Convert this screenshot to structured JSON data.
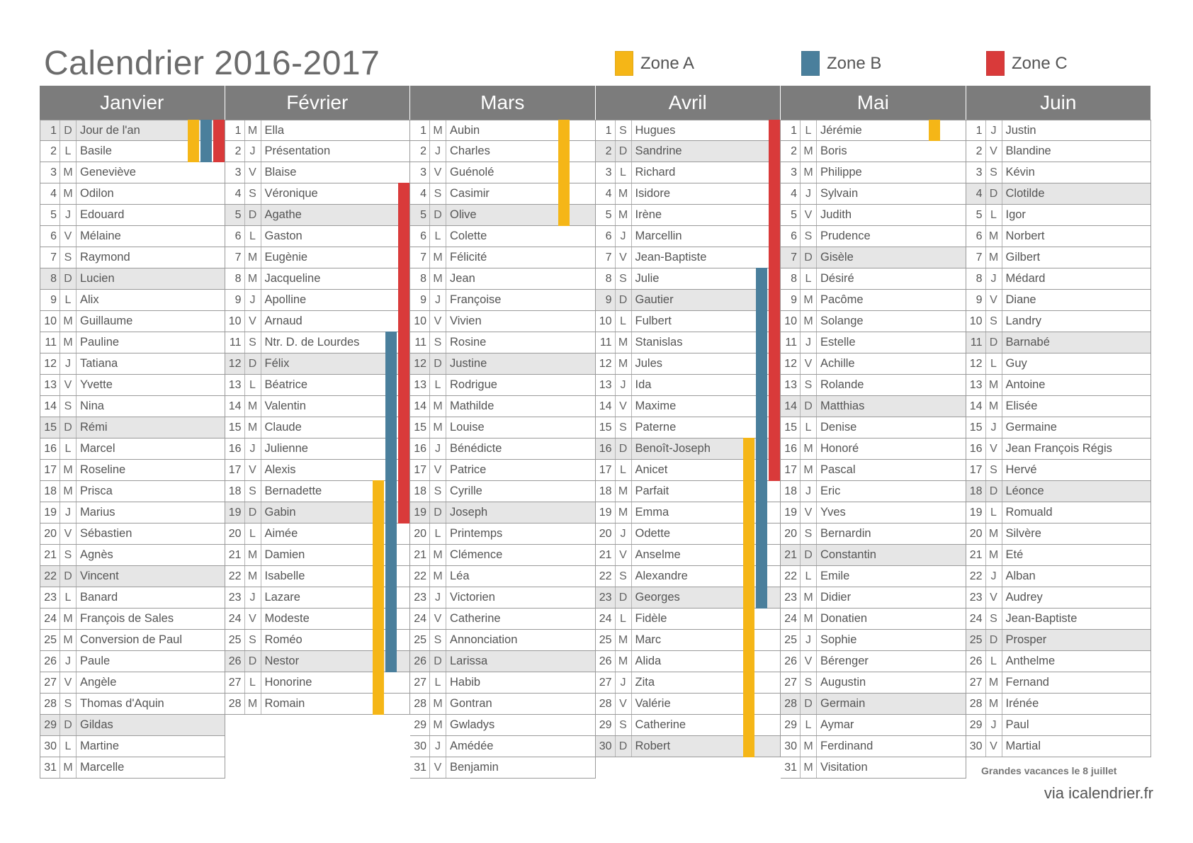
{
  "title": "Calendrier 2016-2017",
  "legend": [
    {
      "label": "Zone A",
      "color": "#f5b617"
    },
    {
      "label": "Zone B",
      "color": "#4a7f9c"
    },
    {
      "label": "Zone C",
      "color": "#d93a3a"
    }
  ],
  "months": [
    {
      "name": "Janvier",
      "days": [
        {
          "n": "1",
          "d": "D",
          "s": "Jour de l'an",
          "z": [
            "a",
            "b",
            "c"
          ]
        },
        {
          "n": "2",
          "d": "L",
          "s": "Basile",
          "z": [
            "a",
            "b",
            "c"
          ]
        },
        {
          "n": "3",
          "d": "M",
          "s": "Geneviève"
        },
        {
          "n": "4",
          "d": "M",
          "s": "Odilon"
        },
        {
          "n": "5",
          "d": "J",
          "s": "Edouard"
        },
        {
          "n": "6",
          "d": "V",
          "s": "Mélaine"
        },
        {
          "n": "7",
          "d": "S",
          "s": "Raymond"
        },
        {
          "n": "8",
          "d": "D",
          "s": "Lucien"
        },
        {
          "n": "9",
          "d": "L",
          "s": "Alix"
        },
        {
          "n": "10",
          "d": "M",
          "s": "Guillaume"
        },
        {
          "n": "11",
          "d": "M",
          "s": "Pauline"
        },
        {
          "n": "12",
          "d": "J",
          "s": "Tatiana"
        },
        {
          "n": "13",
          "d": "V",
          "s": "Yvette"
        },
        {
          "n": "14",
          "d": "S",
          "s": "Nina"
        },
        {
          "n": "15",
          "d": "D",
          "s": "Rémi"
        },
        {
          "n": "16",
          "d": "L",
          "s": "Marcel"
        },
        {
          "n": "17",
          "d": "M",
          "s": "Roseline"
        },
        {
          "n": "18",
          "d": "M",
          "s": "Prisca"
        },
        {
          "n": "19",
          "d": "J",
          "s": "Marius"
        },
        {
          "n": "20",
          "d": "V",
          "s": "Sébastien"
        },
        {
          "n": "21",
          "d": "S",
          "s": "Agnès"
        },
        {
          "n": "22",
          "d": "D",
          "s": "Vincent"
        },
        {
          "n": "23",
          "d": "L",
          "s": "Banard"
        },
        {
          "n": "24",
          "d": "M",
          "s": "François de Sales"
        },
        {
          "n": "25",
          "d": "M",
          "s": "Conversion de Paul"
        },
        {
          "n": "26",
          "d": "J",
          "s": "Paule"
        },
        {
          "n": "27",
          "d": "V",
          "s": "Angèle"
        },
        {
          "n": "28",
          "d": "S",
          "s": "Thomas d'Aquin"
        },
        {
          "n": "29",
          "d": "D",
          "s": "Gildas"
        },
        {
          "n": "30",
          "d": "L",
          "s": "Martine"
        },
        {
          "n": "31",
          "d": "M",
          "s": "Marcelle"
        }
      ]
    },
    {
      "name": "Février",
      "days": [
        {
          "n": "1",
          "d": "M",
          "s": "Ella"
        },
        {
          "n": "2",
          "d": "J",
          "s": "Présentation"
        },
        {
          "n": "3",
          "d": "V",
          "s": "Blaise"
        },
        {
          "n": "4",
          "d": "S",
          "s": "Véronique",
          "z": [
            "c"
          ]
        },
        {
          "n": "5",
          "d": "D",
          "s": "Agathe",
          "z": [
            "c"
          ]
        },
        {
          "n": "6",
          "d": "L",
          "s": "Gaston",
          "z": [
            "c"
          ]
        },
        {
          "n": "7",
          "d": "M",
          "s": "Eugènie",
          "z": [
            "c"
          ]
        },
        {
          "n": "8",
          "d": "M",
          "s": "Jacqueline",
          "z": [
            "c"
          ]
        },
        {
          "n": "9",
          "d": "J",
          "s": "Apolline",
          "z": [
            "c"
          ]
        },
        {
          "n": "10",
          "d": "V",
          "s": "Arnaud",
          "z": [
            "c"
          ]
        },
        {
          "n": "11",
          "d": "S",
          "s": "Ntr. D. de Lourdes",
          "z": [
            "b",
            "c"
          ]
        },
        {
          "n": "12",
          "d": "D",
          "s": "Félix",
          "z": [
            "b",
            "c"
          ]
        },
        {
          "n": "13",
          "d": "L",
          "s": "Béatrice",
          "z": [
            "b",
            "c"
          ]
        },
        {
          "n": "14",
          "d": "M",
          "s": "Valentin",
          "z": [
            "b",
            "c"
          ]
        },
        {
          "n": "15",
          "d": "M",
          "s": "Claude",
          "z": [
            "b",
            "c"
          ]
        },
        {
          "n": "16",
          "d": "J",
          "s": "Julienne",
          "z": [
            "b",
            "c"
          ]
        },
        {
          "n": "17",
          "d": "V",
          "s": "Alexis",
          "z": [
            "b",
            "c"
          ]
        },
        {
          "n": "18",
          "d": "S",
          "s": "Bernadette",
          "z": [
            "a",
            "b",
            "c"
          ]
        },
        {
          "n": "19",
          "d": "D",
          "s": "Gabin",
          "z": [
            "a",
            "b",
            "c"
          ]
        },
        {
          "n": "20",
          "d": "L",
          "s": "Aimée",
          "z": [
            "a",
            "b"
          ]
        },
        {
          "n": "21",
          "d": "M",
          "s": "Damien",
          "z": [
            "a",
            "b"
          ]
        },
        {
          "n": "22",
          "d": "M",
          "s": "Isabelle",
          "z": [
            "a",
            "b"
          ]
        },
        {
          "n": "23",
          "d": "J",
          "s": "Lazare",
          "z": [
            "a",
            "b"
          ]
        },
        {
          "n": "24",
          "d": "V",
          "s": "Modeste",
          "z": [
            "a",
            "b"
          ]
        },
        {
          "n": "25",
          "d": "S",
          "s": "Roméo",
          "z": [
            "a",
            "b"
          ]
        },
        {
          "n": "26",
          "d": "D",
          "s": "Nestor",
          "z": [
            "a",
            "b"
          ]
        },
        {
          "n": "27",
          "d": "L",
          "s": "Honorine",
          "z": [
            "a"
          ]
        },
        {
          "n": "28",
          "d": "M",
          "s": "Romain",
          "z": [
            "a"
          ]
        }
      ]
    },
    {
      "name": "Mars",
      "days": [
        {
          "n": "1",
          "d": "M",
          "s": "Aubin",
          "z": [
            "a"
          ]
        },
        {
          "n": "2",
          "d": "J",
          "s": "Charles",
          "z": [
            "a"
          ]
        },
        {
          "n": "3",
          "d": "V",
          "s": "Guénolé",
          "z": [
            "a"
          ]
        },
        {
          "n": "4",
          "d": "S",
          "s": "Casimir",
          "z": [
            "a"
          ]
        },
        {
          "n": "5",
          "d": "D",
          "s": "Olive",
          "z": [
            "a"
          ]
        },
        {
          "n": "6",
          "d": "L",
          "s": "Colette"
        },
        {
          "n": "7",
          "d": "M",
          "s": "Félicité"
        },
        {
          "n": "8",
          "d": "M",
          "s": "Jean"
        },
        {
          "n": "9",
          "d": "J",
          "s": "Françoise"
        },
        {
          "n": "10",
          "d": "V",
          "s": "Vivien"
        },
        {
          "n": "11",
          "d": "S",
          "s": "Rosine"
        },
        {
          "n": "12",
          "d": "D",
          "s": "Justine"
        },
        {
          "n": "13",
          "d": "L",
          "s": "Rodrigue"
        },
        {
          "n": "14",
          "d": "M",
          "s": "Mathilde"
        },
        {
          "n": "15",
          "d": "M",
          "s": "Louise"
        },
        {
          "n": "16",
          "d": "J",
          "s": "Bénédicte"
        },
        {
          "n": "17",
          "d": "V",
          "s": "Patrice"
        },
        {
          "n": "18",
          "d": "S",
          "s": "Cyrille"
        },
        {
          "n": "19",
          "d": "D",
          "s": "Joseph"
        },
        {
          "n": "20",
          "d": "L",
          "s": "Printemps"
        },
        {
          "n": "21",
          "d": "M",
          "s": "Clémence"
        },
        {
          "n": "22",
          "d": "M",
          "s": "Léa"
        },
        {
          "n": "23",
          "d": "J",
          "s": "Victorien"
        },
        {
          "n": "24",
          "d": "V",
          "s": "Catherine"
        },
        {
          "n": "25",
          "d": "S",
          "s": "Annonciation"
        },
        {
          "n": "26",
          "d": "D",
          "s": "Larissa"
        },
        {
          "n": "27",
          "d": "L",
          "s": "Habib"
        },
        {
          "n": "28",
          "d": "M",
          "s": "Gontran"
        },
        {
          "n": "29",
          "d": "M",
          "s": "Gwladys"
        },
        {
          "n": "30",
          "d": "J",
          "s": "Amédée"
        },
        {
          "n": "31",
          "d": "V",
          "s": "Benjamin"
        }
      ]
    },
    {
      "name": "Avril",
      "days": [
        {
          "n": "1",
          "d": "S",
          "s": "Hugues",
          "z": [
            "c"
          ]
        },
        {
          "n": "2",
          "d": "D",
          "s": "Sandrine",
          "z": [
            "c"
          ]
        },
        {
          "n": "3",
          "d": "L",
          "s": "Richard",
          "z": [
            "c"
          ]
        },
        {
          "n": "4",
          "d": "M",
          "s": "Isidore",
          "z": [
            "c"
          ]
        },
        {
          "n": "5",
          "d": "M",
          "s": "Irène",
          "z": [
            "c"
          ]
        },
        {
          "n": "6",
          "d": "J",
          "s": "Marcellin",
          "z": [
            "c"
          ]
        },
        {
          "n": "7",
          "d": "V",
          "s": "Jean-Baptiste",
          "z": [
            "c"
          ]
        },
        {
          "n": "8",
          "d": "S",
          "s": "Julie",
          "z": [
            "b",
            "c"
          ]
        },
        {
          "n": "9",
          "d": "D",
          "s": "Gautier",
          "z": [
            "b",
            "c"
          ]
        },
        {
          "n": "10",
          "d": "L",
          "s": "Fulbert",
          "z": [
            "b",
            "c"
          ]
        },
        {
          "n": "11",
          "d": "M",
          "s": "Stanislas",
          "z": [
            "b",
            "c"
          ]
        },
        {
          "n": "12",
          "d": "M",
          "s": "Jules",
          "z": [
            "b",
            "c"
          ]
        },
        {
          "n": "13",
          "d": "J",
          "s": "Ida",
          "z": [
            "b",
            "c"
          ]
        },
        {
          "n": "14",
          "d": "V",
          "s": "Maxime",
          "z": [
            "b",
            "c"
          ]
        },
        {
          "n": "15",
          "d": "S",
          "s": "Paterne",
          "z": [
            "b",
            "c"
          ]
        },
        {
          "n": "16",
          "d": "D",
          "s": "Benoît-Joseph",
          "z": [
            "a",
            "b",
            "c"
          ]
        },
        {
          "n": "17",
          "d": "L",
          "s": "Anicet",
          "z": [
            "a",
            "b",
            "c"
          ]
        },
        {
          "n": "18",
          "d": "M",
          "s": "Parfait",
          "z": [
            "a",
            "b"
          ]
        },
        {
          "n": "19",
          "d": "M",
          "s": "Emma",
          "z": [
            "a",
            "b"
          ]
        },
        {
          "n": "20",
          "d": "J",
          "s": "Odette",
          "z": [
            "a",
            "b"
          ]
        },
        {
          "n": "21",
          "d": "V",
          "s": "Anselme",
          "z": [
            "a",
            "b"
          ]
        },
        {
          "n": "22",
          "d": "S",
          "s": "Alexandre",
          "z": [
            "a",
            "b"
          ]
        },
        {
          "n": "23",
          "d": "D",
          "s": "Georges",
          "z": [
            "a",
            "b"
          ]
        },
        {
          "n": "24",
          "d": "L",
          "s": "Fidèle",
          "z": [
            "a"
          ]
        },
        {
          "n": "25",
          "d": "M",
          "s": "Marc",
          "z": [
            "a"
          ]
        },
        {
          "n": "26",
          "d": "M",
          "s": "Alida",
          "z": [
            "a"
          ]
        },
        {
          "n": "27",
          "d": "J",
          "s": "Zita",
          "z": [
            "a"
          ]
        },
        {
          "n": "28",
          "d": "V",
          "s": "Valérie",
          "z": [
            "a"
          ]
        },
        {
          "n": "29",
          "d": "S",
          "s": "Catherine",
          "z": [
            "a"
          ]
        },
        {
          "n": "30",
          "d": "D",
          "s": "Robert",
          "z": [
            "a"
          ]
        }
      ]
    },
    {
      "name": "Mai",
      "days": [
        {
          "n": "1",
          "d": "L",
          "s": "Jérémie",
          "z": [
            "a"
          ]
        },
        {
          "n": "2",
          "d": "M",
          "s": "Boris"
        },
        {
          "n": "3",
          "d": "M",
          "s": "Philippe"
        },
        {
          "n": "4",
          "d": "J",
          "s": "Sylvain"
        },
        {
          "n": "5",
          "d": "V",
          "s": "Judith"
        },
        {
          "n": "6",
          "d": "S",
          "s": "Prudence"
        },
        {
          "n": "7",
          "d": "D",
          "s": "Gisèle"
        },
        {
          "n": "8",
          "d": "L",
          "s": "Désiré"
        },
        {
          "n": "9",
          "d": "M",
          "s": "Pacôme"
        },
        {
          "n": "10",
          "d": "M",
          "s": "Solange"
        },
        {
          "n": "11",
          "d": "J",
          "s": "Estelle"
        },
        {
          "n": "12",
          "d": "V",
          "s": "Achille"
        },
        {
          "n": "13",
          "d": "S",
          "s": "Rolande"
        },
        {
          "n": "14",
          "d": "D",
          "s": "Matthias"
        },
        {
          "n": "15",
          "d": "L",
          "s": "Denise"
        },
        {
          "n": "16",
          "d": "M",
          "s": "Honoré"
        },
        {
          "n": "17",
          "d": "M",
          "s": "Pascal"
        },
        {
          "n": "18",
          "d": "J",
          "s": "Eric"
        },
        {
          "n": "19",
          "d": "V",
          "s": "Yves"
        },
        {
          "n": "20",
          "d": "S",
          "s": "Bernardin"
        },
        {
          "n": "21",
          "d": "D",
          "s": "Constantin"
        },
        {
          "n": "22",
          "d": "L",
          "s": "Emile"
        },
        {
          "n": "23",
          "d": "M",
          "s": "Didier"
        },
        {
          "n": "24",
          "d": "M",
          "s": "Donatien"
        },
        {
          "n": "25",
          "d": "J",
          "s": "Sophie"
        },
        {
          "n": "26",
          "d": "V",
          "s": "Bérenger"
        },
        {
          "n": "27",
          "d": "S",
          "s": "Augustin"
        },
        {
          "n": "28",
          "d": "D",
          "s": "Germain"
        },
        {
          "n": "29",
          "d": "L",
          "s": "Aymar"
        },
        {
          "n": "30",
          "d": "M",
          "s": "Ferdinand"
        },
        {
          "n": "31",
          "d": "M",
          "s": "Visitation"
        }
      ]
    },
    {
      "name": "Juin",
      "days": [
        {
          "n": "1",
          "d": "J",
          "s": "Justin"
        },
        {
          "n": "2",
          "d": "V",
          "s": "Blandine"
        },
        {
          "n": "3",
          "d": "S",
          "s": "Kévin"
        },
        {
          "n": "4",
          "d": "D",
          "s": "Clotilde"
        },
        {
          "n": "5",
          "d": "L",
          "s": "Igor"
        },
        {
          "n": "6",
          "d": "M",
          "s": "Norbert"
        },
        {
          "n": "7",
          "d": "M",
          "s": "Gilbert"
        },
        {
          "n": "8",
          "d": "J",
          "s": "Médard"
        },
        {
          "n": "9",
          "d": "V",
          "s": "Diane"
        },
        {
          "n": "10",
          "d": "S",
          "s": "Landry"
        },
        {
          "n": "11",
          "d": "D",
          "s": "Barnabé"
        },
        {
          "n": "12",
          "d": "L",
          "s": "Guy"
        },
        {
          "n": "13",
          "d": "M",
          "s": "Antoine"
        },
        {
          "n": "14",
          "d": "M",
          "s": "Elisée"
        },
        {
          "n": "15",
          "d": "J",
          "s": "Germaine"
        },
        {
          "n": "16",
          "d": "V",
          "s": "Jean François Régis"
        },
        {
          "n": "17",
          "d": "S",
          "s": "Hervé"
        },
        {
          "n": "18",
          "d": "D",
          "s": "Léonce"
        },
        {
          "n": "19",
          "d": "L",
          "s": "Romuald"
        },
        {
          "n": "20",
          "d": "M",
          "s": "Silvère"
        },
        {
          "n": "21",
          "d": "M",
          "s": "Eté"
        },
        {
          "n": "22",
          "d": "J",
          "s": "Alban"
        },
        {
          "n": "23",
          "d": "V",
          "s": "Audrey"
        },
        {
          "n": "24",
          "d": "S",
          "s": "Jean-Baptiste"
        },
        {
          "n": "25",
          "d": "D",
          "s": "Prosper"
        },
        {
          "n": "26",
          "d": "L",
          "s": "Anthelme"
        },
        {
          "n": "27",
          "d": "M",
          "s": "Fernand"
        },
        {
          "n": "28",
          "d": "M",
          "s": "Irénée"
        },
        {
          "n": "29",
          "d": "J",
          "s": "Paul"
        },
        {
          "n": "30",
          "d": "V",
          "s": "Martial"
        }
      ]
    }
  ],
  "note": "Grandes vacances le 8 juillet",
  "credit": "via icalendrier.fr"
}
